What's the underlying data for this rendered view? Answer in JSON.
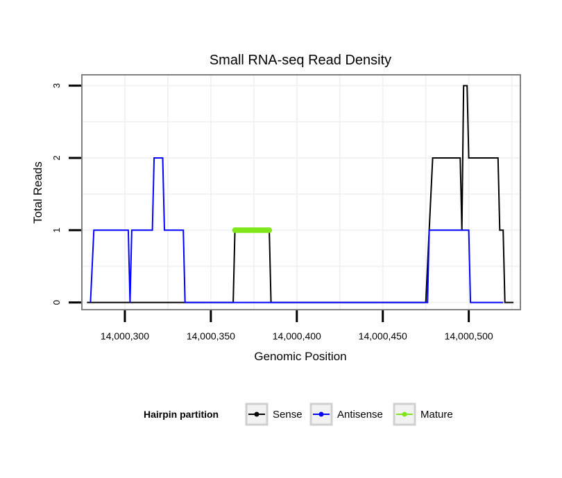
{
  "chart_data": {
    "type": "line",
    "title": "Small RNA-seq Read Density",
    "xlabel": "Genomic Position",
    "ylabel": "Total Reads",
    "xlim": [
      14000275,
      14000530
    ],
    "ylim": [
      -0.1,
      3.15
    ],
    "x_ticks": [
      14000300,
      14000350,
      14000400,
      14000450,
      14000500
    ],
    "x_tick_labels": [
      "14,000,300",
      "14,000,350",
      "14,000,400",
      "14,000,450",
      "14,000,500"
    ],
    "y_ticks": [
      0,
      1,
      2,
      3
    ],
    "y_tick_labels": [
      "0",
      "1",
      "2",
      "3"
    ],
    "grid": true,
    "legend": {
      "title": "Hairpin partition",
      "position": "bottom",
      "entries": [
        "Sense",
        "Antisense",
        "Mature"
      ]
    },
    "series": [
      {
        "name": "Sense",
        "color": "#000000",
        "points": [
          [
            14000278,
            0
          ],
          [
            14000363,
            0
          ],
          [
            14000364,
            1
          ],
          [
            14000384,
            1
          ],
          [
            14000385,
            0
          ],
          [
            14000475,
            0
          ],
          [
            14000477,
            1
          ],
          [
            14000479,
            2
          ],
          [
            14000495,
            2
          ],
          [
            14000496,
            1
          ],
          [
            14000497,
            3
          ],
          [
            14000499,
            3
          ],
          [
            14000500,
            2
          ],
          [
            14000517,
            2
          ],
          [
            14000518,
            1
          ],
          [
            14000520,
            1
          ],
          [
            14000521,
            0
          ],
          [
            14000526,
            0
          ]
        ]
      },
      {
        "name": "Antisense",
        "color": "#0000ff",
        "points": [
          [
            14000280,
            0
          ],
          [
            14000282,
            1
          ],
          [
            14000302,
            1
          ],
          [
            14000303,
            0
          ],
          [
            14000304,
            1
          ],
          [
            14000316,
            1
          ],
          [
            14000317,
            2
          ],
          [
            14000322,
            2
          ],
          [
            14000323,
            1
          ],
          [
            14000334,
            1
          ],
          [
            14000335,
            0
          ],
          [
            14000476,
            0
          ],
          [
            14000477,
            1
          ],
          [
            14000500,
            1
          ],
          [
            14000501,
            0
          ],
          [
            14000520,
            0
          ]
        ]
      },
      {
        "name": "Mature",
        "color": "#7fe61a",
        "points": [
          [
            14000364,
            1
          ],
          [
            14000384,
            1
          ]
        ]
      }
    ]
  }
}
